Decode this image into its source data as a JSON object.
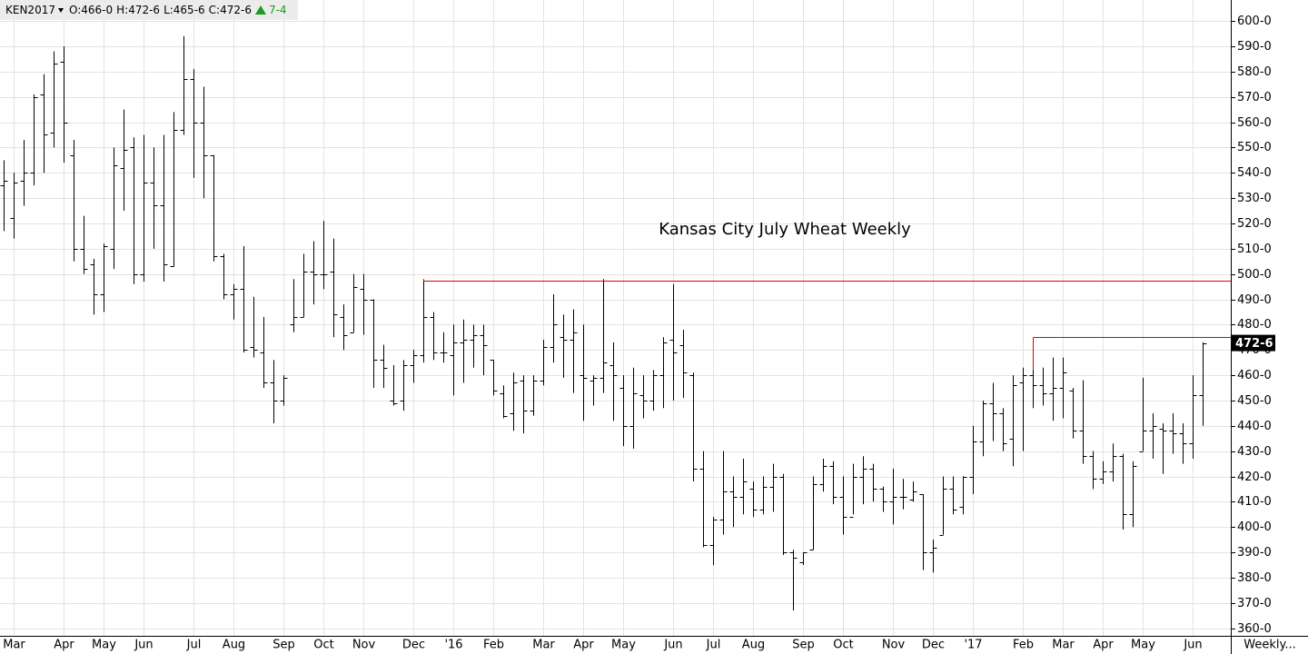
{
  "header": {
    "symbol": "KEN2017",
    "quote": [
      "O:466-0",
      "H:472-6",
      "L:465-6",
      "C:472-6"
    ],
    "change": "7-4"
  },
  "chart_data": {
    "type": "ohlc",
    "annotation": "Kansas City July Wheat Weekly",
    "annotation_color": "#ff0000",
    "timeframe": "Weekly...",
    "color": "#000000",
    "grid": true,
    "ylim": [
      357,
      608.3
    ],
    "yticks": [
      {
        "value": 360,
        "label": "360-0"
      },
      {
        "value": 370,
        "label": "370-0"
      },
      {
        "value": 380,
        "label": "380-0"
      },
      {
        "value": 390,
        "label": "390-0"
      },
      {
        "value": 400,
        "label": "400-0"
      },
      {
        "value": 410,
        "label": "410-0"
      },
      {
        "value": 420,
        "label": "420-0"
      },
      {
        "value": 430,
        "label": "430-0"
      },
      {
        "value": 440,
        "label": "440-0"
      },
      {
        "value": 450,
        "label": "450-0"
      },
      {
        "value": 460,
        "label": "460-0"
      },
      {
        "value": 470,
        "label": "470-0"
      },
      {
        "value": 480,
        "label": "480-0"
      },
      {
        "value": 490,
        "label": "490-0"
      },
      {
        "value": 500,
        "label": "500-0"
      },
      {
        "value": 510,
        "label": "510-0"
      },
      {
        "value": 520,
        "label": "520-0"
      },
      {
        "value": 530,
        "label": "530-0"
      },
      {
        "value": 540,
        "label": "540-0"
      },
      {
        "value": 550,
        "label": "550-0"
      },
      {
        "value": 560,
        "label": "560-0"
      },
      {
        "value": 570,
        "label": "570-0"
      },
      {
        "value": 580,
        "label": "580-0"
      },
      {
        "value": 590,
        "label": "590-0"
      },
      {
        "value": 600,
        "label": "600-0"
      }
    ],
    "last_price": {
      "value": 472.75,
      "label": "472-6"
    },
    "hlines": [
      {
        "value": 497.5,
        "from_bar": 42,
        "color": "#e00000"
      },
      {
        "value": 475,
        "from_bar": 103,
        "color": "#e00000"
      }
    ],
    "categories": [
      null,
      "Mar",
      null,
      null,
      null,
      null,
      "Apr",
      null,
      null,
      null,
      "May",
      null,
      null,
      null,
      "Jun",
      null,
      null,
      null,
      null,
      "Jul",
      null,
      null,
      null,
      "Aug",
      null,
      null,
      null,
      null,
      "Sep",
      null,
      null,
      null,
      "Oct",
      null,
      null,
      null,
      "Nov",
      null,
      null,
      null,
      null,
      "Dec",
      null,
      null,
      null,
      "'16",
      null,
      null,
      null,
      "Feb",
      null,
      null,
      null,
      null,
      "Mar",
      null,
      null,
      null,
      "Apr",
      null,
      null,
      null,
      "May",
      null,
      null,
      null,
      null,
      "Jun",
      null,
      null,
      null,
      "Jul",
      null,
      null,
      null,
      "Aug",
      null,
      null,
      null,
      null,
      "Sep",
      null,
      null,
      null,
      "Oct",
      null,
      null,
      null,
      null,
      "Nov",
      null,
      null,
      null,
      "Dec",
      null,
      null,
      null,
      "'17",
      null,
      null,
      null,
      null,
      "Feb",
      null,
      null,
      null,
      "Mar",
      null,
      null,
      null,
      "Apr",
      null,
      null,
      null,
      "May",
      null,
      null,
      null,
      null,
      "Jun",
      null
    ],
    "open": [
      535,
      522,
      537,
      540,
      571,
      556,
      584,
      547,
      510,
      504,
      492,
      510,
      542,
      550,
      500,
      536,
      527,
      503,
      557,
      577,
      560,
      547,
      507,
      492,
      494,
      471,
      469,
      457,
      450,
      480,
      483,
      501,
      500,
      501,
      483,
      477,
      494,
      490,
      466,
      450,
      450,
      464,
      468,
      483,
      469,
      468,
      473,
      474,
      476,
      466,
      453,
      445,
      458,
      446,
      458,
      471,
      475,
      474,
      460,
      458,
      459,
      464,
      455,
      440,
      452,
      450,
      460,
      474,
      472,
      460,
      423,
      393,
      403,
      414,
      412,
      415,
      407,
      416,
      420,
      390,
      386,
      391,
      417,
      424,
      412,
      404,
      420,
      423,
      415,
      410,
      412,
      411,
      413,
      390,
      397,
      415,
      408,
      420,
      434,
      449,
      445,
      435,
      457,
      460,
      456,
      453,
      455,
      454,
      438,
      428,
      419,
      422,
      428,
      405,
      430,
      438,
      439,
      438,
      437,
      433,
      452
    ],
    "high": [
      545,
      540,
      553,
      571,
      579,
      588,
      590,
      553,
      523,
      506,
      512,
      550,
      565,
      554,
      555,
      550,
      555,
      564,
      594,
      581,
      574,
      547,
      508,
      496,
      511,
      491,
      483,
      466,
      460,
      498,
      508,
      513,
      521,
      514,
      488,
      500,
      500,
      490,
      472,
      464,
      466,
      470,
      498,
      485,
      477,
      480,
      482,
      480,
      480,
      466,
      456,
      461,
      460,
      460,
      474,
      492,
      484,
      486,
      480,
      460,
      498,
      473,
      460,
      463,
      460,
      462,
      475,
      496,
      478,
      461,
      430,
      404,
      430,
      420,
      427,
      418,
      420,
      425,
      421,
      391,
      390,
      420,
      427,
      426,
      420,
      425,
      428,
      425,
      416,
      423,
      419,
      418,
      413,
      395,
      420,
      420,
      420,
      440,
      450,
      457,
      447,
      460,
      463,
      462,
      463,
      467,
      467,
      455,
      458,
      430,
      426,
      433,
      429,
      426,
      459,
      445,
      441,
      445,
      441,
      460,
      473
    ],
    "low": [
      517,
      514,
      527,
      535,
      540,
      550,
      544,
      505,
      500,
      484,
      485,
      502,
      525,
      496,
      497,
      510,
      497,
      503,
      555,
      538,
      530,
      505,
      490,
      482,
      469,
      467,
      455,
      441,
      448,
      477,
      483,
      488,
      494,
      475,
      470,
      477,
      476,
      455,
      455,
      448,
      446,
      457,
      465,
      466,
      465,
      452,
      457,
      463,
      460,
      452,
      443,
      438,
      437,
      444,
      456,
      465,
      459,
      453,
      442,
      448,
      453,
      442,
      432,
      431,
      443,
      446,
      447,
      450,
      451,
      418,
      392,
      385,
      397,
      400,
      405,
      404,
      405,
      406,
      389,
      367,
      385,
      391,
      414,
      409,
      397,
      405,
      409,
      410,
      406,
      401,
      407,
      410,
      383,
      382,
      397,
      405,
      405,
      413,
      428,
      434,
      430,
      424,
      430,
      447,
      448,
      442,
      443,
      435,
      425,
      415,
      417,
      418,
      399,
      400,
      430,
      427,
      421,
      429,
      425,
      427,
      440
    ],
    "close": [
      537,
      536,
      540,
      570,
      555,
      583,
      560,
      510,
      502,
      492,
      511,
      543,
      549,
      500,
      536,
      527,
      504,
      557,
      577,
      560,
      547,
      507,
      492,
      494,
      470,
      470,
      457,
      450,
      459,
      483,
      501,
      500,
      500,
      484,
      476,
      495,
      490,
      466,
      463,
      449,
      464,
      468,
      483,
      469,
      469,
      473,
      474,
      476,
      472,
      454,
      444,
      457,
      446,
      458,
      471,
      480,
      474,
      477,
      459,
      459,
      465,
      460,
      440,
      453,
      450,
      460,
      473,
      469,
      461,
      423,
      393,
      403,
      414,
      412,
      418,
      407,
      416,
      420,
      390,
      388,
      390,
      417,
      424,
      412,
      404,
      420,
      423,
      415,
      410,
      412,
      412,
      414,
      390,
      392,
      415,
      407,
      420,
      434,
      449,
      445,
      433,
      456,
      460,
      456,
      453,
      455,
      461,
      438,
      428,
      419,
      422,
      428,
      405,
      424,
      438,
      440,
      438,
      437,
      433,
      452,
      472.75
    ]
  }
}
